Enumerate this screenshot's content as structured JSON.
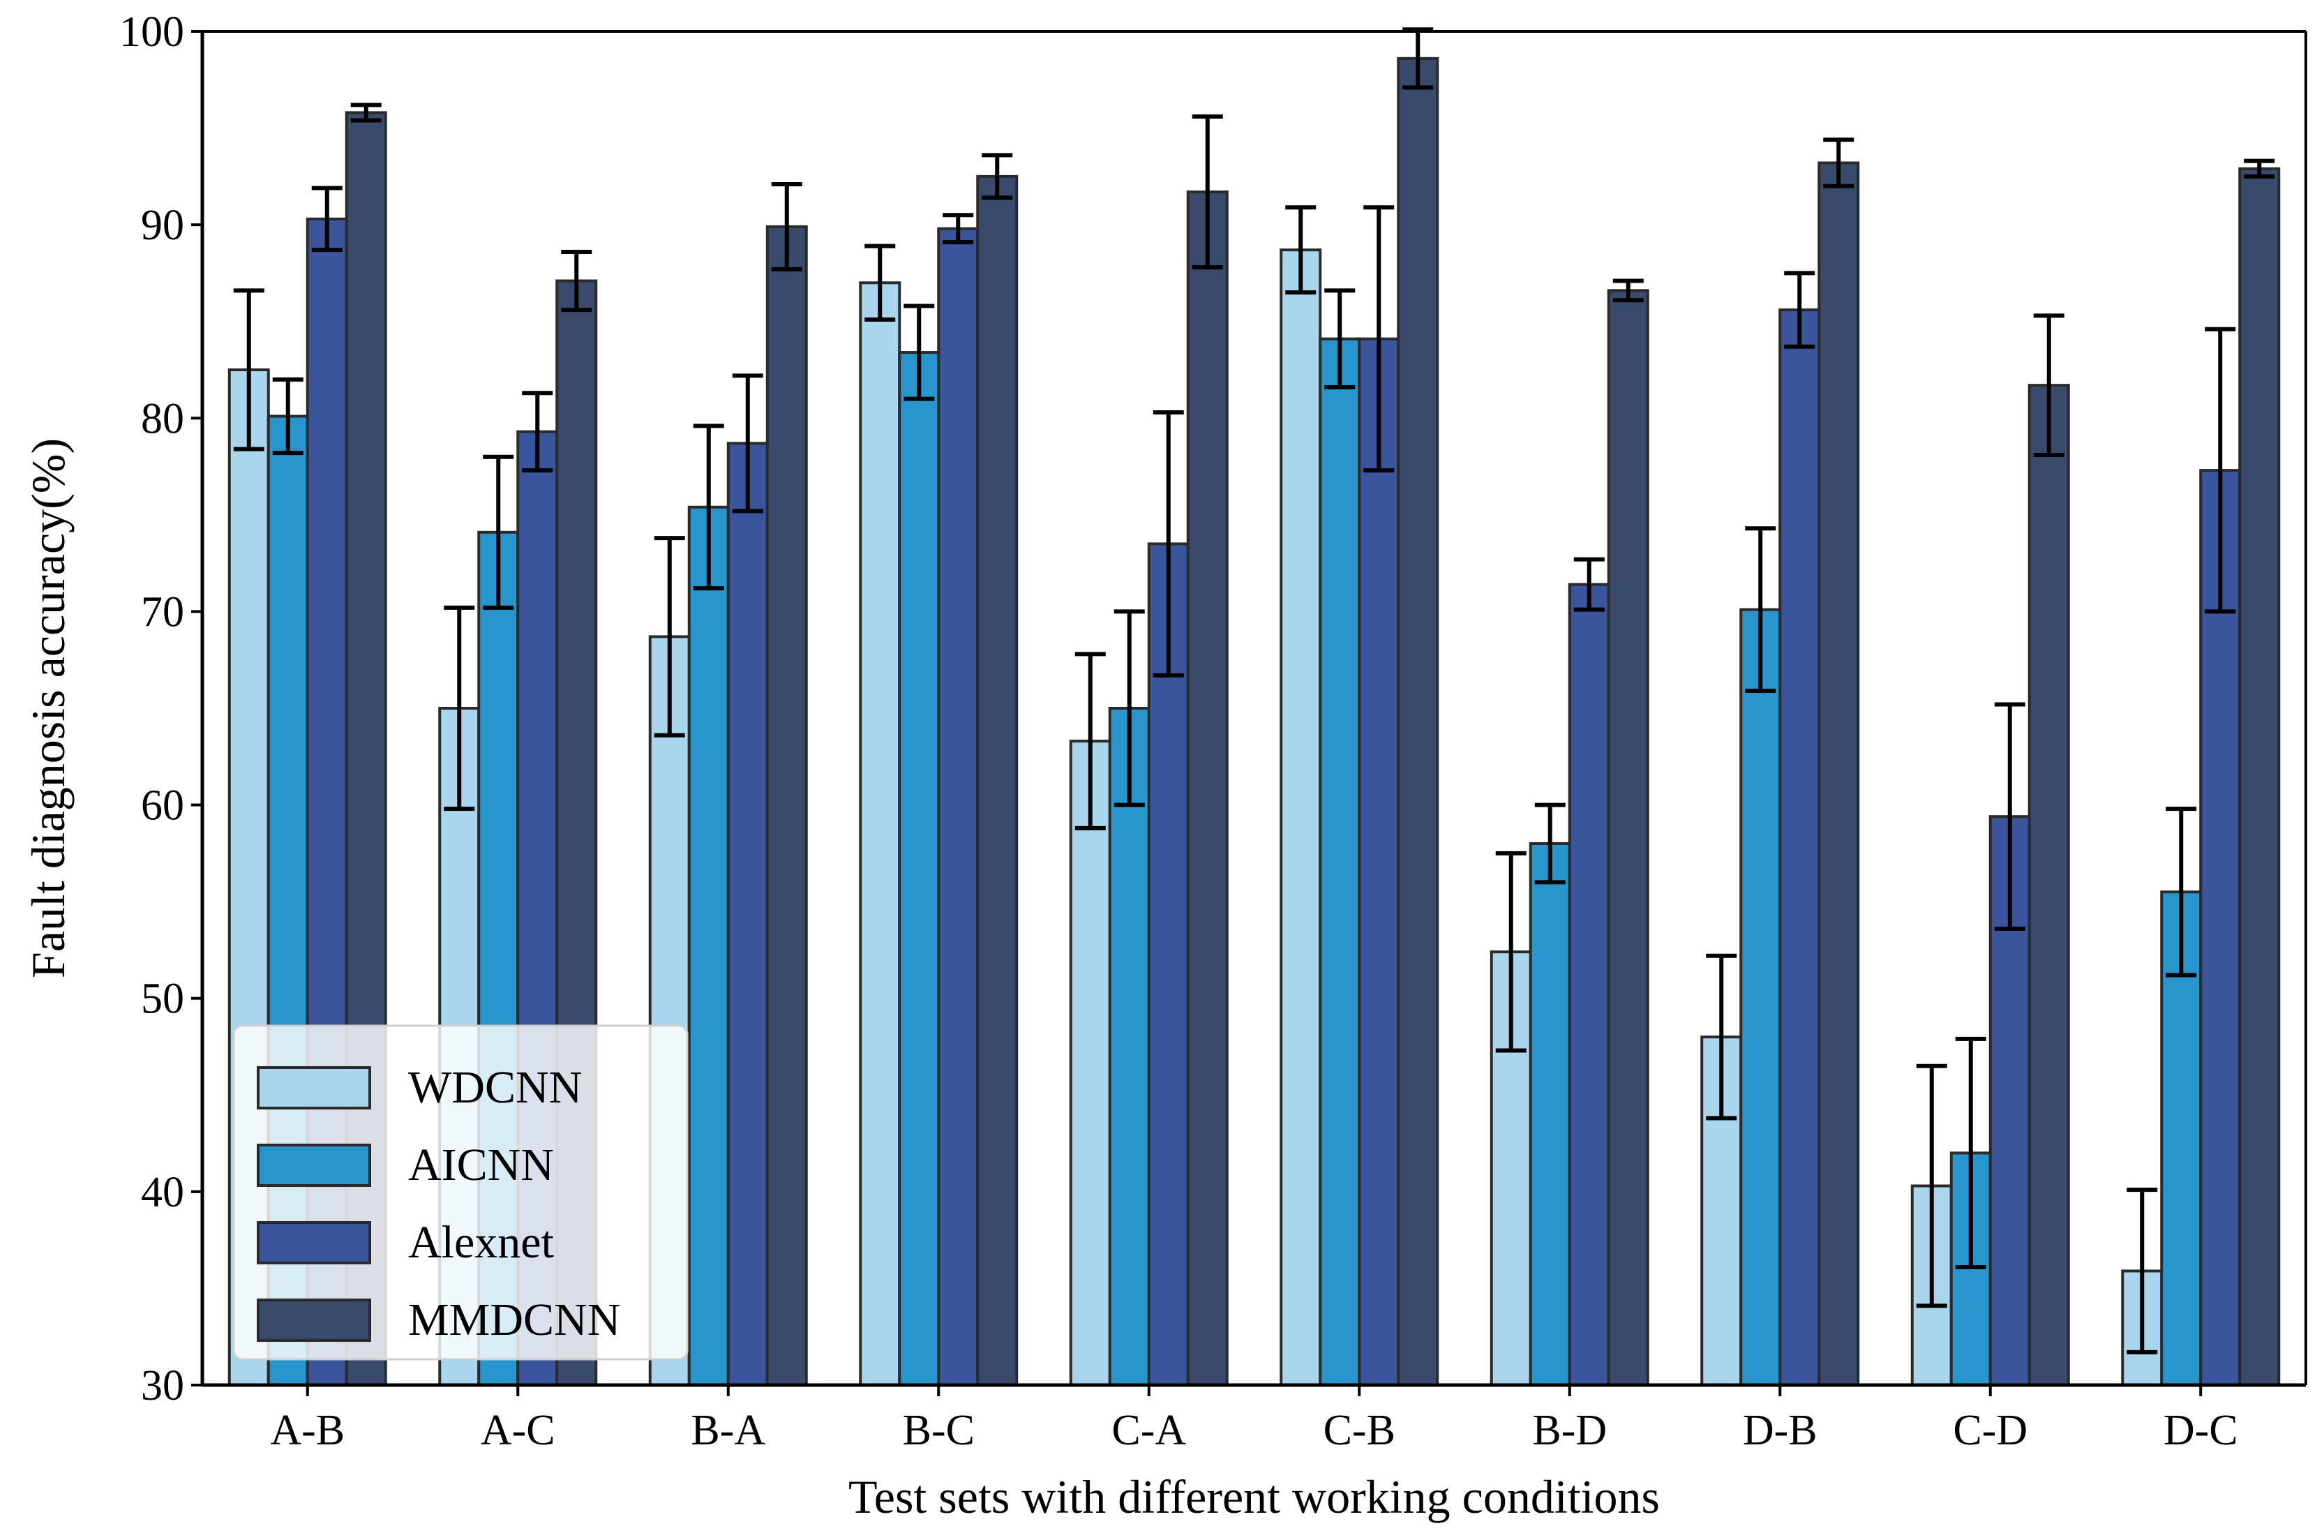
{
  "chart_data": {
    "type": "bar",
    "title": "",
    "xlabel": "Test sets with different working conditions",
    "ylabel": "Fault diagnosis accuracy(%)",
    "ylim": [
      30,
      100
    ],
    "yticks": [
      30,
      40,
      50,
      60,
      70,
      80,
      90,
      100
    ],
    "grid": false,
    "legend_position": "bottom-left",
    "categories": [
      "A-B",
      "A-C",
      "B-A",
      "B-C",
      "C-A",
      "C-B",
      "B-D",
      "D-B",
      "C-D",
      "D-C"
    ],
    "series": [
      {
        "name": "WDCNN",
        "color": "#a9d6ec",
        "values": [
          82.5,
          65.0,
          68.7,
          87.0,
          63.3,
          88.7,
          52.4,
          48.0,
          40.3,
          35.9
        ],
        "errors": [
          4.1,
          5.2,
          5.1,
          1.9,
          4.5,
          2.2,
          5.1,
          4.2,
          6.2,
          4.2
        ]
      },
      {
        "name": "AICNN",
        "color": "#2896cd",
        "values": [
          80.1,
          74.1,
          75.4,
          83.4,
          65.0,
          84.1,
          58.0,
          70.1,
          42.0,
          55.5
        ],
        "errors": [
          1.9,
          3.9,
          4.2,
          2.4,
          5.0,
          2.5,
          2.0,
          4.2,
          5.9,
          4.3
        ]
      },
      {
        "name": "Alexnet",
        "color": "#3a559c",
        "values": [
          90.3,
          79.3,
          78.7,
          89.8,
          73.5,
          84.1,
          71.4,
          85.6,
          59.4,
          77.3
        ],
        "errors": [
          1.6,
          2.0,
          3.5,
          0.7,
          6.8,
          6.8,
          1.3,
          1.9,
          5.8,
          7.3
        ]
      },
      {
        "name": "MMDCNN",
        "color": "#3a4a6c",
        "values": [
          95.8,
          87.1,
          89.9,
          92.5,
          91.7,
          98.6,
          86.6,
          93.2,
          81.7,
          92.9
        ],
        "errors": [
          0.4,
          1.5,
          2.2,
          1.1,
          3.9,
          1.5,
          0.5,
          1.2,
          3.6,
          0.4
        ]
      }
    ]
  }
}
